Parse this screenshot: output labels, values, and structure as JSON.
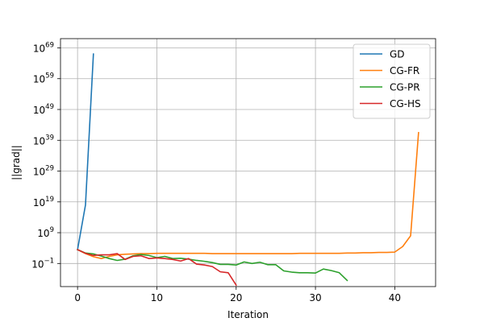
{
  "chart_data": {
    "type": "line",
    "title": "",
    "xlabel": "Iteration",
    "ylabel": "||grad||",
    "yscale": "log",
    "xlim": [
      -2.15,
      45.15
    ],
    "ylim_log10": [
      -8.5,
      72
    ],
    "grid": true,
    "legend_position": "top-right",
    "x_ticks": [
      {
        "value": 0,
        "label": "0"
      },
      {
        "value": 10,
        "label": "10"
      },
      {
        "value": 20,
        "label": "20"
      },
      {
        "value": 30,
        "label": "30"
      },
      {
        "value": 40,
        "label": "40"
      }
    ],
    "y_ticks": [
      {
        "exp": -1,
        "base": "10",
        "sup": "−1"
      },
      {
        "exp": 9,
        "base": "10",
        "sup": "9"
      },
      {
        "exp": 19,
        "base": "10",
        "sup": "19"
      },
      {
        "exp": 29,
        "base": "10",
        "sup": "29"
      },
      {
        "exp": 39,
        "base": "10",
        "sup": "39"
      },
      {
        "exp": 49,
        "base": "10",
        "sup": "49"
      },
      {
        "exp": 59,
        "base": "10",
        "sup": "59"
      },
      {
        "exp": 69,
        "base": "10",
        "sup": "69"
      }
    ],
    "series": [
      {
        "name": "GD",
        "color": "#1f77b4",
        "x": [
          0,
          1,
          2
        ],
        "log10_y": [
          3.5,
          18,
          67
        ]
      },
      {
        "name": "CG-FR",
        "color": "#ff7f0e",
        "x": [
          0,
          1,
          2,
          3,
          4,
          5,
          6,
          7,
          8,
          9,
          10,
          11,
          12,
          13,
          14,
          15,
          16,
          17,
          18,
          19,
          20,
          21,
          22,
          23,
          24,
          25,
          26,
          27,
          28,
          29,
          30,
          31,
          32,
          33,
          34,
          35,
          36,
          37,
          38,
          39,
          40,
          41,
          42,
          43
        ],
        "log10_y": [
          3.5,
          2.2,
          1.2,
          0.6,
          1.3,
          1.8,
          2.0,
          2.1,
          2.2,
          2.2,
          2.3,
          2.3,
          2.3,
          2.3,
          2.3,
          2.3,
          2.3,
          2.2,
          2.2,
          2.2,
          2.2,
          2.2,
          2.2,
          2.2,
          2.2,
          2.2,
          2.2,
          2.2,
          2.3,
          2.3,
          2.3,
          2.3,
          2.3,
          2.3,
          2.4,
          2.4,
          2.5,
          2.5,
          2.6,
          2.6,
          2.7,
          4.5,
          8.0,
          41.5
        ]
      },
      {
        "name": "CG-PR",
        "color": "#2ca02c",
        "x": [
          0,
          1,
          2,
          3,
          4,
          5,
          6,
          7,
          8,
          9,
          10,
          11,
          12,
          13,
          14,
          15,
          16,
          17,
          18,
          19,
          20,
          21,
          22,
          23,
          24,
          25,
          26,
          27,
          28,
          29,
          30,
          31,
          32,
          33,
          34
        ],
        "log10_y": [
          3.5,
          2.4,
          2.1,
          1.4,
          0.6,
          0.0,
          0.4,
          1.5,
          1.9,
          1.6,
          0.9,
          1.3,
          0.6,
          0.7,
          0.4,
          0.0,
          -0.3,
          -0.7,
          -1.3,
          -1.3,
          -1.5,
          -0.5,
          -1.0,
          -0.6,
          -1.4,
          -1.4,
          -3.4,
          -3.8,
          -4.0,
          -4.0,
          -4.1,
          -2.8,
          -3.3,
          -4.0,
          -6.5
        ]
      },
      {
        "name": "CG-HS",
        "color": "#d62728",
        "x": [
          0,
          1,
          2,
          3,
          4,
          5,
          6,
          7,
          8,
          9,
          10,
          11,
          12,
          13,
          14,
          15,
          16,
          17,
          18,
          19,
          20
        ],
        "log10_y": [
          3.5,
          2.3,
          1.6,
          1.8,
          1.8,
          2.2,
          0.3,
          1.3,
          1.5,
          0.6,
          0.8,
          0.6,
          0.3,
          -0.2,
          0.6,
          -1.2,
          -1.5,
          -2.0,
          -3.7,
          -4.0,
          -8.0
        ]
      }
    ]
  }
}
